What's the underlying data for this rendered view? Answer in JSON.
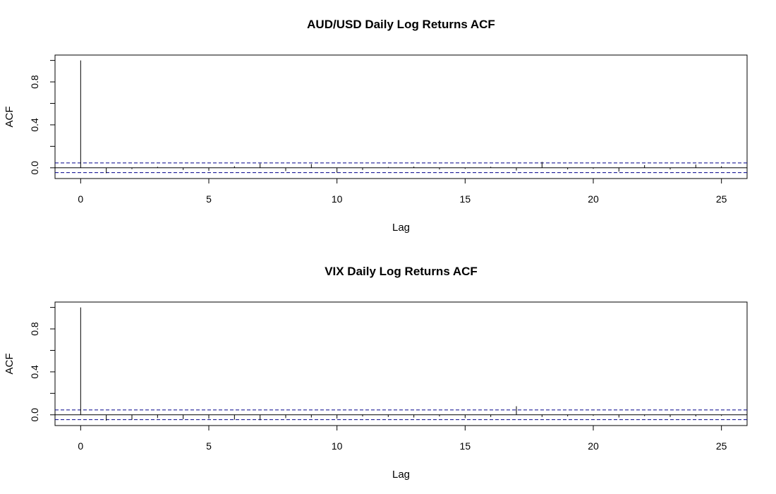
{
  "chart_data": [
    {
      "type": "bar",
      "title": "AUD/USD Daily Log Returns ACF",
      "xlabel": "Lag",
      "ylabel": "ACF",
      "xlim": [
        -1,
        26
      ],
      "ylim": [
        -0.1,
        1.05
      ],
      "x_ticks": [
        "0",
        "5",
        "10",
        "15",
        "20",
        "25"
      ],
      "y_ticks": [
        "0.0",
        "0.4",
        "0.8"
      ],
      "confidence_bound": 0.045,
      "colors": {
        "bars": "#000000",
        "confidence": "#00008b",
        "frame": "#000000"
      },
      "lags": [
        0,
        1,
        2,
        3,
        4,
        5,
        6,
        7,
        8,
        9,
        10,
        11,
        12,
        13,
        14,
        15,
        16,
        17,
        18,
        19,
        20,
        21,
        22,
        23,
        24,
        25
      ],
      "acf": [
        1.0,
        -0.05,
        -0.012,
        0.01,
        -0.02,
        -0.028,
        0.015,
        0.04,
        -0.03,
        0.035,
        -0.045,
        -0.02,
        0.008,
        0.012,
        -0.015,
        -0.01,
        0.01,
        -0.025,
        0.055,
        -0.015,
        -0.01,
        -0.035,
        0.025,
        -0.015,
        0.03,
        0.015
      ]
    },
    {
      "type": "bar",
      "title": "VIX Daily Log Returns ACF",
      "xlabel": "Lag",
      "ylabel": "ACF",
      "xlim": [
        -1,
        26
      ],
      "ylim": [
        -0.1,
        1.05
      ],
      "x_ticks": [
        "0",
        "5",
        "10",
        "15",
        "20",
        "25"
      ],
      "y_ticks": [
        "0.0",
        "0.4",
        "0.8"
      ],
      "confidence_bound": 0.045,
      "colors": {
        "bars": "#000000",
        "confidence": "#00008b",
        "frame": "#000000"
      },
      "lags": [
        0,
        1,
        2,
        3,
        4,
        5,
        6,
        7,
        8,
        9,
        10,
        11,
        12,
        13,
        14,
        15,
        16,
        17,
        18,
        19,
        20,
        21,
        22,
        23,
        24,
        25
      ],
      "acf": [
        1.0,
        -0.055,
        -0.045,
        -0.03,
        -0.04,
        -0.035,
        -0.045,
        -0.05,
        -0.03,
        -0.025,
        -0.035,
        -0.015,
        -0.02,
        -0.025,
        -0.015,
        -0.03,
        -0.02,
        0.08,
        -0.02,
        -0.015,
        -0.01,
        -0.025,
        -0.012,
        -0.02,
        -0.015,
        -0.01
      ]
    }
  ]
}
